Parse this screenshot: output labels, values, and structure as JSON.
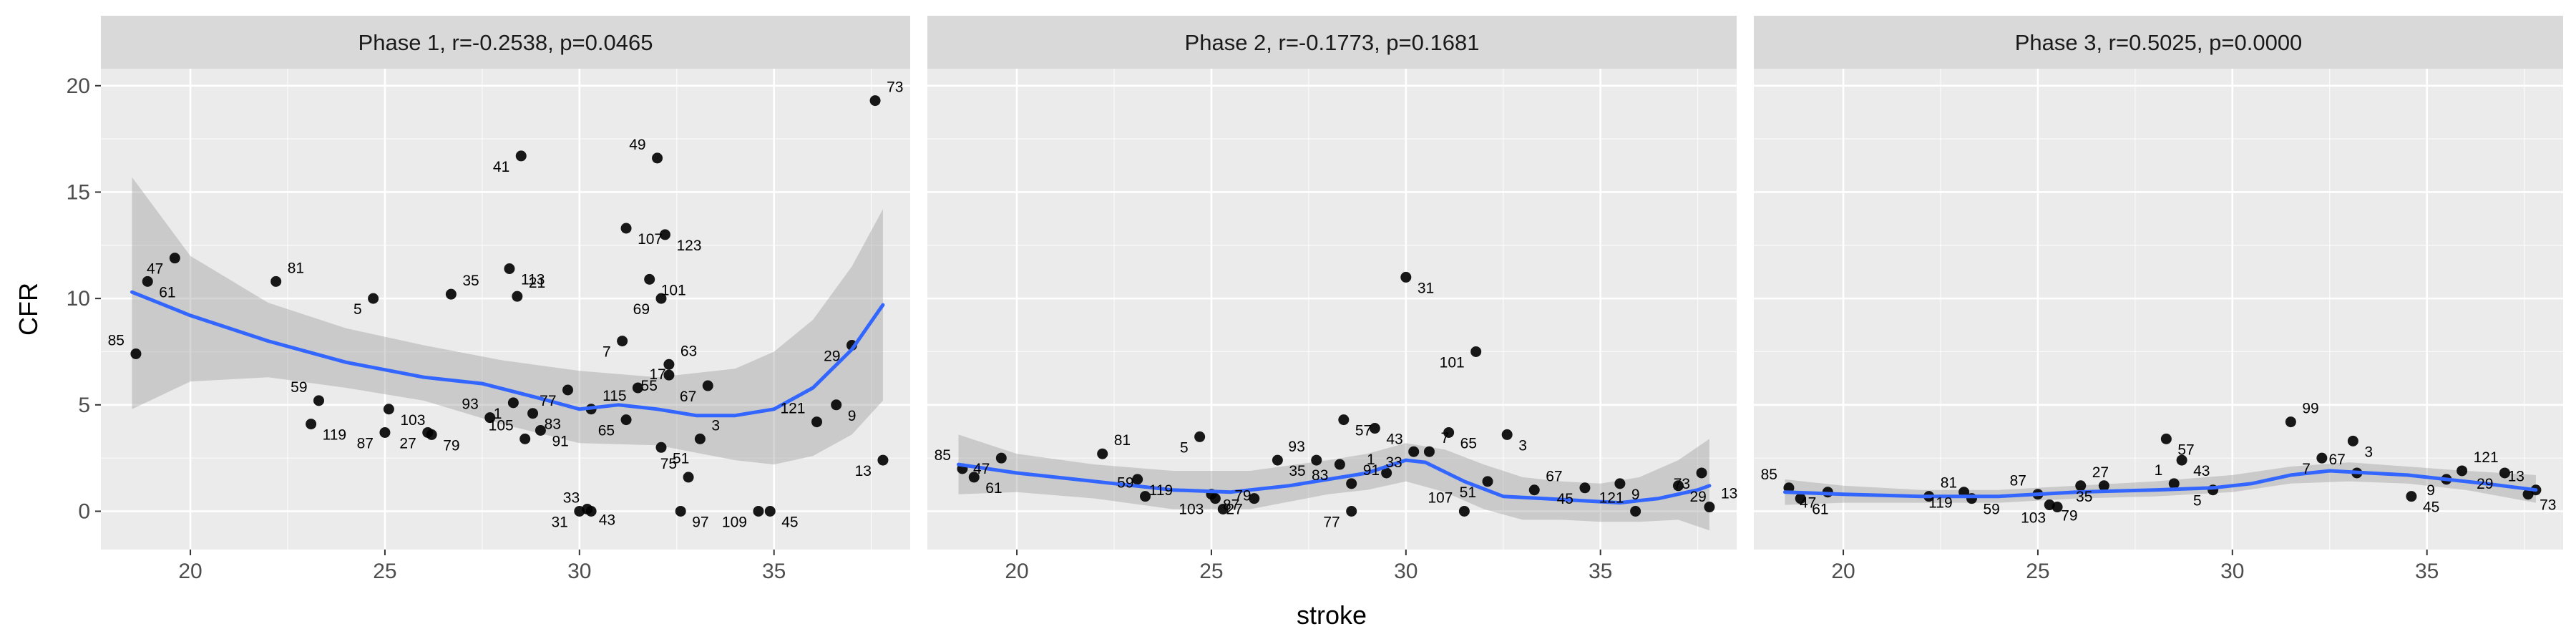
{
  "chart_data": {
    "type": "scatter",
    "xlabel": "stroke",
    "ylabel": "CFR",
    "xlim": [
      17.7,
      38.5
    ],
    "ylim": [
      -1.8,
      20.8
    ],
    "x_ticks": [
      20,
      25,
      30,
      35
    ],
    "y_ticks": [
      0,
      5,
      10,
      15,
      20
    ],
    "grid": true,
    "facets": [
      {
        "title": "Phase 1, r=-0.2538, p=0.0465",
        "points": [
          {
            "x": 18.6,
            "y": 7.4,
            "label": "85"
          },
          {
            "x": 18.9,
            "y": 10.8,
            "label": "61"
          },
          {
            "x": 19.6,
            "y": 11.9,
            "label": "47"
          },
          {
            "x": 22.2,
            "y": 10.8,
            "label": "81"
          },
          {
            "x": 24.7,
            "y": 10.0,
            "label": "5"
          },
          {
            "x": 23.1,
            "y": 4.1,
            "label": "119"
          },
          {
            "x": 23.3,
            "y": 5.2,
            "label": "59"
          },
          {
            "x": 25.1,
            "y": 4.8,
            "label": "103"
          },
          {
            "x": 25.0,
            "y": 3.7,
            "label": "87"
          },
          {
            "x": 26.7,
            "y": 10.2,
            "label": "35"
          },
          {
            "x": 26.1,
            "y": 3.7,
            "label": "27"
          },
          {
            "x": 26.2,
            "y": 3.6,
            "label": "79"
          },
          {
            "x": 27.7,
            "y": 4.4,
            "label": "93"
          },
          {
            "x": 28.2,
            "y": 11.4,
            "label": "113"
          },
          {
            "x": 28.5,
            "y": 16.7,
            "label": "41"
          },
          {
            "x": 28.4,
            "y": 10.1,
            "label": "21"
          },
          {
            "x": 28.3,
            "y": 5.1,
            "label": "1"
          },
          {
            "x": 28.8,
            "y": 4.6,
            "label": "83"
          },
          {
            "x": 28.6,
            "y": 3.4,
            "label": "105"
          },
          {
            "x": 29.0,
            "y": 3.8,
            "label": "91"
          },
          {
            "x": 29.7,
            "y": 5.7,
            "label": "77"
          },
          {
            "x": 30.3,
            "y": 4.8,
            "label": "115"
          },
          {
            "x": 30.0,
            "y": 0.0,
            "label": "31"
          },
          {
            "x": 30.2,
            "y": 0.1,
            "label": "43"
          },
          {
            "x": 30.3,
            "y": 0.0,
            "label": "33"
          },
          {
            "x": 31.2,
            "y": 13.3,
            "label": "107"
          },
          {
            "x": 31.1,
            "y": 8.0,
            "label": "7"
          },
          {
            "x": 31.5,
            "y": 5.8,
            "label": "17"
          },
          {
            "x": 31.2,
            "y": 4.3,
            "label": "65"
          },
          {
            "x": 31.8,
            "y": 10.9,
            "label": "101"
          },
          {
            "x": 32.0,
            "y": 16.6,
            "label": "49"
          },
          {
            "x": 32.2,
            "y": 13.0,
            "label": "123"
          },
          {
            "x": 32.1,
            "y": 10.0,
            "label": "69"
          },
          {
            "x": 32.3,
            "y": 6.9,
            "label": "63"
          },
          {
            "x": 32.3,
            "y": 6.4,
            "label": "55"
          },
          {
            "x": 32.1,
            "y": 3.0,
            "label": "51"
          },
          {
            "x": 32.8,
            "y": 1.6,
            "label": "75"
          },
          {
            "x": 32.6,
            "y": 0.0,
            "label": "97"
          },
          {
            "x": 33.3,
            "y": 5.9,
            "label": "67"
          },
          {
            "x": 33.1,
            "y": 3.4,
            "label": "3"
          },
          {
            "x": 34.6,
            "y": 0.0,
            "label": "109"
          },
          {
            "x": 34.9,
            "y": 0.0,
            "label": "45"
          },
          {
            "x": 36.1,
            "y": 4.2,
            "label": "121"
          },
          {
            "x": 36.6,
            "y": 5.0,
            "label": "9"
          },
          {
            "x": 37.0,
            "y": 7.8,
            "label": "29"
          },
          {
            "x": 37.6,
            "y": 19.3,
            "label": "73"
          },
          {
            "x": 37.8,
            "y": 2.4,
            "label": "13"
          }
        ],
        "smooth": [
          [
            18.5,
            10.3
          ],
          [
            20,
            9.2
          ],
          [
            22,
            8.0
          ],
          [
            24,
            7.0
          ],
          [
            26,
            6.3
          ],
          [
            27.5,
            6.0
          ],
          [
            29,
            5.3
          ],
          [
            30,
            4.8
          ],
          [
            31,
            5.0
          ],
          [
            32,
            4.8
          ],
          [
            33,
            4.5
          ],
          [
            34,
            4.5
          ],
          [
            35,
            4.8
          ],
          [
            36,
            5.8
          ],
          [
            37,
            7.6
          ],
          [
            37.8,
            9.7
          ]
        ],
        "band_upper": [
          [
            18.5,
            15.7
          ],
          [
            20,
            12.0
          ],
          [
            22,
            9.8
          ],
          [
            24,
            8.6
          ],
          [
            26,
            7.8
          ],
          [
            28,
            7.1
          ],
          [
            30,
            6.6
          ],
          [
            32,
            6.3
          ],
          [
            34,
            6.7
          ],
          [
            35,
            7.5
          ],
          [
            36,
            9.0
          ],
          [
            37,
            11.5
          ],
          [
            37.8,
            14.2
          ]
        ],
        "band_lower": [
          [
            18.5,
            4.8
          ],
          [
            20,
            6.1
          ],
          [
            22,
            6.3
          ],
          [
            24,
            5.8
          ],
          [
            26,
            5.2
          ],
          [
            28,
            4.1
          ],
          [
            30,
            3.2
          ],
          [
            32,
            3.1
          ],
          [
            34,
            2.4
          ],
          [
            35,
            2.2
          ],
          [
            36,
            2.6
          ],
          [
            37,
            3.6
          ],
          [
            37.8,
            5.2
          ]
        ]
      },
      {
        "title": "Phase 2, r=-0.1773, p=0.1681",
        "points": [
          {
            "x": 18.6,
            "y": 2.0,
            "label": "85"
          },
          {
            "x": 18.9,
            "y": 1.6,
            "label": "61"
          },
          {
            "x": 19.6,
            "y": 2.5,
            "label": "47"
          },
          {
            "x": 22.2,
            "y": 2.7,
            "label": "81"
          },
          {
            "x": 24.7,
            "y": 3.5,
            "label": "5"
          },
          {
            "x": 23.1,
            "y": 1.5,
            "label": "119"
          },
          {
            "x": 23.3,
            "y": 0.7,
            "label": "59"
          },
          {
            "x": 25.0,
            "y": 0.8,
            "label": "87"
          },
          {
            "x": 25.1,
            "y": 0.6,
            "label": "103"
          },
          {
            "x": 25.3,
            "y": 0.1,
            "label": "79"
          },
          {
            "x": 26.1,
            "y": 0.6,
            "label": "27"
          },
          {
            "x": 26.7,
            "y": 2.4,
            "label": "35"
          },
          {
            "x": 27.7,
            "y": 2.4,
            "label": "93"
          },
          {
            "x": 28.4,
            "y": 4.3,
            "label": "57"
          },
          {
            "x": 28.3,
            "y": 2.2,
            "label": "83"
          },
          {
            "x": 28.6,
            "y": 1.3,
            "label": "91"
          },
          {
            "x": 28.6,
            "y": 0.0,
            "label": "77"
          },
          {
            "x": 29.2,
            "y": 3.9,
            "label": "43"
          },
          {
            "x": 29.5,
            "y": 1.8,
            "label": "1"
          },
          {
            "x": 30.0,
            "y": 11.0,
            "label": "31"
          },
          {
            "x": 30.2,
            "y": 2.8,
            "label": "33"
          },
          {
            "x": 30.6,
            "y": 2.8,
            "label": "7"
          },
          {
            "x": 31.8,
            "y": 7.5,
            "label": "101"
          },
          {
            "x": 31.1,
            "y": 3.7,
            "label": "65"
          },
          {
            "x": 31.5,
            "y": 0.0,
            "label": "107"
          },
          {
            "x": 32.6,
            "y": 3.6,
            "label": "3"
          },
          {
            "x": 32.1,
            "y": 1.4,
            "label": "51"
          },
          {
            "x": 33.3,
            "y": 1.0,
            "label": "67"
          },
          {
            "x": 34.6,
            "y": 1.1,
            "label": "45"
          },
          {
            "x": 35.5,
            "y": 1.3,
            "label": "9"
          },
          {
            "x": 35.9,
            "y": 0.0,
            "label": "121"
          },
          {
            "x": 37.0,
            "y": 1.2,
            "label": "29"
          },
          {
            "x": 37.6,
            "y": 1.8,
            "label": "73"
          },
          {
            "x": 37.8,
            "y": 0.2,
            "label": "13"
          }
        ],
        "smooth": [
          [
            18.5,
            2.2
          ],
          [
            20,
            1.8
          ],
          [
            22,
            1.4
          ],
          [
            24,
            1.0
          ],
          [
            25.5,
            0.9
          ],
          [
            27,
            1.2
          ],
          [
            28,
            1.5
          ],
          [
            29,
            1.8
          ],
          [
            30,
            2.4
          ],
          [
            30.5,
            2.3
          ],
          [
            31.5,
            1.4
          ],
          [
            32.5,
            0.7
          ],
          [
            33.5,
            0.6
          ],
          [
            34.5,
            0.5
          ],
          [
            35.5,
            0.4
          ],
          [
            36.5,
            0.6
          ],
          [
            37.5,
            1.0
          ],
          [
            37.8,
            1.2
          ]
        ],
        "band_upper": [
          [
            18.5,
            3.6
          ],
          [
            20,
            2.7
          ],
          [
            22,
            2.2
          ],
          [
            24,
            1.9
          ],
          [
            26,
            1.9
          ],
          [
            28,
            2.4
          ],
          [
            29,
            2.7
          ],
          [
            30,
            3.2
          ],
          [
            31,
            2.9
          ],
          [
            32,
            2.2
          ],
          [
            33,
            1.6
          ],
          [
            34,
            1.4
          ],
          [
            35,
            1.3
          ],
          [
            36,
            1.6
          ],
          [
            37,
            2.4
          ],
          [
            37.8,
            3.4
          ]
        ],
        "band_lower": [
          [
            18.5,
            0.8
          ],
          [
            20,
            0.9
          ],
          [
            22,
            0.6
          ],
          [
            24,
            0.1
          ],
          [
            26,
            0.1
          ],
          [
            28,
            0.8
          ],
          [
            29,
            1.0
          ],
          [
            30,
            1.4
          ],
          [
            31,
            0.9
          ],
          [
            32,
            0.1
          ],
          [
            33,
            -0.4
          ],
          [
            34,
            -0.4
          ],
          [
            35,
            -0.5
          ],
          [
            36,
            -0.5
          ],
          [
            37,
            -0.4
          ],
          [
            37.8,
            -0.9
          ]
        ]
      },
      {
        "title": "Phase 3, r=0.5025, p=0.0000",
        "points": [
          {
            "x": 18.6,
            "y": 1.1,
            "label": "85"
          },
          {
            "x": 18.9,
            "y": 0.6,
            "label": "61"
          },
          {
            "x": 19.6,
            "y": 0.9,
            "label": "47"
          },
          {
            "x": 22.2,
            "y": 0.7,
            "label": "81"
          },
          {
            "x": 23.1,
            "y": 0.9,
            "label": "119"
          },
          {
            "x": 23.3,
            "y": 0.6,
            "label": "59"
          },
          {
            "x": 25.0,
            "y": 0.8,
            "label": "87"
          },
          {
            "x": 25.3,
            "y": 0.3,
            "label": "79"
          },
          {
            "x": 25.5,
            "y": 0.2,
            "label": "103"
          },
          {
            "x": 26.1,
            "y": 1.2,
            "label": "27"
          },
          {
            "x": 26.7,
            "y": 1.2,
            "label": "35"
          },
          {
            "x": 28.3,
            "y": 3.4,
            "label": "57"
          },
          {
            "x": 28.5,
            "y": 1.3,
            "label": "1"
          },
          {
            "x": 28.7,
            "y": 2.4,
            "label": "43"
          },
          {
            "x": 29.5,
            "y": 1.0,
            "label": "5"
          },
          {
            "x": 31.5,
            "y": 4.2,
            "label": "99"
          },
          {
            "x": 32.3,
            "y": 2.5,
            "label": "7"
          },
          {
            "x": 33.1,
            "y": 3.3,
            "label": "3"
          },
          {
            "x": 33.2,
            "y": 1.8,
            "label": "67"
          },
          {
            "x": 34.6,
            "y": 0.7,
            "label": "45"
          },
          {
            "x": 35.5,
            "y": 1.5,
            "label": "9"
          },
          {
            "x": 35.9,
            "y": 1.9,
            "label": "121"
          },
          {
            "x": 37.0,
            "y": 1.8,
            "label": "29"
          },
          {
            "x": 37.6,
            "y": 0.8,
            "label": "73"
          },
          {
            "x": 37.8,
            "y": 1.0,
            "label": "13"
          }
        ],
        "smooth": [
          [
            18.5,
            0.9
          ],
          [
            20,
            0.8
          ],
          [
            22,
            0.7
          ],
          [
            24,
            0.7
          ],
          [
            26,
            0.9
          ],
          [
            28,
            1.0
          ],
          [
            29.5,
            1.1
          ],
          [
            30.5,
            1.3
          ],
          [
            31.5,
            1.7
          ],
          [
            32.5,
            1.9
          ],
          [
            33.5,
            1.8
          ],
          [
            34.5,
            1.7
          ],
          [
            35.5,
            1.5
          ],
          [
            36.5,
            1.3
          ],
          [
            37.8,
            1.0
          ]
        ],
        "band_upper": [
          [
            18.5,
            1.5
          ],
          [
            20,
            1.2
          ],
          [
            22,
            1.0
          ],
          [
            24,
            1.0
          ],
          [
            26,
            1.2
          ],
          [
            28,
            1.4
          ],
          [
            30,
            1.7
          ],
          [
            31.5,
            2.1
          ],
          [
            33,
            2.3
          ],
          [
            34.5,
            2.1
          ],
          [
            36,
            1.9
          ],
          [
            37.8,
            1.7
          ]
        ],
        "band_lower": [
          [
            18.5,
            0.3
          ],
          [
            20,
            0.4
          ],
          [
            22,
            0.4
          ],
          [
            24,
            0.4
          ],
          [
            26,
            0.6
          ],
          [
            28,
            0.7
          ],
          [
            30,
            0.9
          ],
          [
            31.5,
            1.3
          ],
          [
            33,
            1.4
          ],
          [
            34.5,
            1.3
          ],
          [
            36,
            1.0
          ],
          [
            37.8,
            0.4
          ]
        ]
      }
    ],
    "colors": {
      "panel_bg": "#EBEBEB",
      "strip_bg": "#D9D9D9",
      "grid": "#FFFFFF",
      "point": "#000000",
      "smooth": "#3366FF",
      "band": "#999999"
    }
  }
}
